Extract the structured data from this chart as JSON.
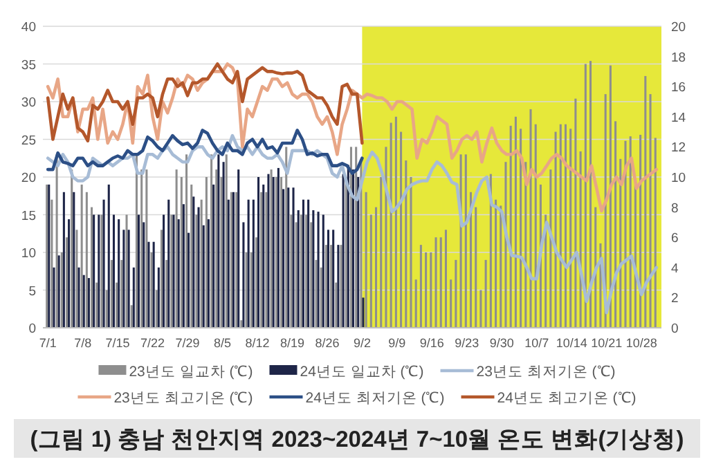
{
  "chart_data": {
    "type": "bar",
    "title": "(그림 1) 충남 천안지역 2023~2024년 7~10월 온도 변화(기상청)",
    "x": [
      "--07-01",
      "--07-02",
      "--07-03",
      "--07-04",
      "--07-05",
      "--07-06",
      "--07-07",
      "--07-08",
      "--07-09",
      "--07-10",
      "--07-11",
      "--07-12",
      "--07-13",
      "--07-14",
      "--07-15",
      "--07-16",
      "--07-17",
      "--07-18",
      "--07-19",
      "--07-20",
      "--07-21",
      "--07-22",
      "--07-23",
      "--07-24",
      "--07-25",
      "--07-26",
      "--07-27",
      "--07-28",
      "--07-29",
      "--07-30",
      "--07-31",
      "--08-01",
      "--08-02",
      "--08-03",
      "--08-04",
      "--08-05",
      "--08-06",
      "--08-07",
      "--08-08",
      "--08-09",
      "--08-10",
      "--08-11",
      "--08-12",
      "--08-13",
      "--08-14",
      "--08-15",
      "--08-16",
      "--08-17",
      "--08-18",
      "--08-19",
      "--08-20",
      "--08-21",
      "--08-22",
      "--08-23",
      "--08-24",
      "--08-25",
      "--08-26",
      "--08-27",
      "--08-28",
      "--08-29",
      "--08-30",
      "--08-31",
      "--09-01",
      "--09-02",
      "--09-03",
      "--09-04",
      "--09-05",
      "--09-06",
      "--09-07",
      "--09-08",
      "--09-09",
      "--09-10",
      "--09-11",
      "--09-12",
      "--09-13",
      "--09-14",
      "--09-15",
      "--09-16",
      "--09-17",
      "--09-18",
      "--09-19",
      "--09-20",
      "--09-21",
      "--09-22",
      "--09-23",
      "--09-24",
      "--09-25",
      "--09-26",
      "--09-27",
      "--09-28",
      "--09-29",
      "--09-30",
      "--10-01",
      "--10-02",
      "--10-03",
      "--10-04",
      "--10-05",
      "--10-06",
      "--10-07",
      "--10-08",
      "--10-09",
      "--10-10",
      "--10-11",
      "--10-12",
      "--10-13",
      "--10-14",
      "--10-15",
      "--10-16",
      "--10-17",
      "--10-18",
      "--10-19",
      "--10-20",
      "--10-21",
      "--10-22",
      "--10-23",
      "--10-24",
      "--10-25",
      "--10-26",
      "--10-27",
      "--10-28",
      "--10-29",
      "--10-30",
      "--10-31"
    ],
    "xlim": [
      "--06-30",
      "--11-01"
    ],
    "xticks": [
      {
        "value": "--07-01",
        "label": "7/1"
      },
      {
        "value": "--07-08",
        "label": "7/8"
      },
      {
        "value": "--07-15",
        "label": "7/15"
      },
      {
        "value": "--07-22",
        "label": "7/22"
      },
      {
        "value": "--07-29",
        "label": "7/29"
      },
      {
        "value": "--08-05",
        "label": "8/5"
      },
      {
        "value": "--08-12",
        "label": "8/12"
      },
      {
        "value": "--08-19",
        "label": "8/19"
      },
      {
        "value": "--08-26",
        "label": "8/26"
      },
      {
        "value": "--09-02",
        "label": "9/2"
      },
      {
        "value": "--09-09",
        "label": "9/9"
      },
      {
        "value": "--09-16",
        "label": "9/16"
      },
      {
        "value": "--09-23",
        "label": "9/23"
      },
      {
        "value": "--09-30",
        "label": "9/30"
      },
      {
        "value": "--10-07",
        "label": "10/7"
      },
      {
        "value": "--10-14",
        "label": "10/14"
      },
      {
        "value": "--10-21",
        "label": "10/21"
      },
      {
        "value": "--10-28",
        "label": "10/28"
      }
    ],
    "ylim": [
      0,
      40
    ],
    "yticks": [
      0,
      5,
      10,
      15,
      20,
      25,
      30,
      35,
      40
    ],
    "y2lim": [
      0,
      20
    ],
    "y2ticks": [
      0,
      2,
      4,
      6,
      8,
      10,
      12,
      14,
      16,
      18,
      20
    ],
    "grid": "y",
    "legend": "bottom",
    "bands": [
      {
        "axis": "x",
        "from": "--09-02",
        "to": "--11-01",
        "color": "#e6e83a"
      }
    ],
    "series": [
      {
        "name": "23년도 일교차 (℃)",
        "axis": "y2",
        "color": "#8e8e8e",
        "values": [
          9.5,
          8.5,
          11.5,
          5,
          6,
          10.5,
          6.5,
          9.5,
          9,
          8,
          3,
          7.5,
          2.5,
          4.5,
          3,
          4.5,
          7.5,
          1.5,
          11.5,
          10.5,
          10.5,
          5,
          2.5,
          6.5,
          4.5,
          7.5,
          10.5,
          10,
          11.5,
          9.5,
          7.5,
          8.5,
          10,
          11.5,
          10.5,
          10,
          11.5,
          9,
          9,
          0.5,
          5,
          5,
          6,
          9,
          9,
          10.5,
          10,
          10,
          12,
          7.5,
          7,
          7.5,
          7.5,
          7,
          4.5,
          4,
          5.5,
          5.5,
          3,
          5.5,
          10,
          12,
          12,
          11,
          9,
          7.5,
          8,
          10,
          12,
          13.6,
          14,
          13,
          11.1,
          10,
          3.2,
          5.5,
          5,
          5,
          6,
          6,
          6.5,
          3.2,
          4.5,
          11.5,
          11.5,
          9,
          8,
          2.5,
          4.5,
          10.2,
          8.5,
          8.1,
          11,
          13.4,
          14,
          13.2,
          11,
          14.5,
          13.5,
          9.5,
          7.5,
          10.5,
          13,
          13.5,
          13.5,
          13.2,
          15.2,
          11.7,
          17.5,
          17.7,
          8,
          5.6,
          15.5,
          17.4,
          13.7,
          11.2,
          12.4,
          12.7,
          9.5,
          12.8,
          16.7,
          15.5,
          12.6
        ]
      },
      {
        "name": "24년도 일교차 (℃)",
        "axis": "y2",
        "color": "#1e2548",
        "values": [
          9.5,
          4,
          4.8,
          9,
          7.2,
          9,
          4,
          3.5,
          3.3,
          7.5,
          7.5,
          8.5,
          9.5,
          7.5,
          7.2,
          6.5,
          6.5,
          4,
          7.5,
          7,
          5.7,
          5.7,
          4,
          7.5,
          8.5,
          7.5,
          7.2,
          8.2,
          6.3,
          8.7,
          8,
          6.8,
          7.2,
          9.5,
          11.5,
          11,
          8.5,
          9,
          10.5,
          7,
          8.5,
          8.5,
          10,
          9.5,
          10.2,
          10,
          10.6,
          9.2,
          9.3,
          9.3,
          7.8,
          8.5,
          8.5,
          7.8,
          7.7,
          7.5,
          6.5,
          6.5,
          5.5,
          10.2,
          10.8,
          10.5,
          10,
          2,
          null,
          null,
          null,
          null,
          null,
          null,
          null,
          null,
          null,
          null,
          null,
          null,
          null,
          null,
          null,
          null,
          null,
          null,
          null,
          null,
          null,
          null,
          null,
          null,
          null,
          null,
          null,
          null,
          null,
          null,
          null,
          null,
          null,
          null,
          null,
          null,
          null,
          null,
          null,
          null,
          null,
          null,
          null,
          null,
          null,
          null,
          null,
          null,
          null,
          null,
          null,
          null,
          null,
          null,
          null,
          null,
          null,
          null,
          null
        ]
      },
      {
        "name": "23년도 최저기온 (℃)",
        "type": "line",
        "color": "#a7bcd6",
        "values": [
          22.5,
          22,
          21.5,
          23,
          22,
          20,
          19.5,
          19.5,
          20,
          22.5,
          22,
          21.5,
          22,
          21.5,
          22,
          22.5,
          22.5,
          23,
          20.5,
          20.5,
          23,
          23,
          22.5,
          23.5,
          24,
          23,
          22.5,
          22,
          22,
          23.5,
          24,
          24,
          23,
          22.5,
          23.5,
          24,
          23.5,
          25.5,
          24,
          23.5,
          24,
          23,
          24,
          23,
          22.5,
          22.5,
          23,
          22,
          20.5,
          23.5,
          23.5,
          23.5,
          23.5,
          23,
          23.5,
          23,
          22.5,
          20.5,
          20,
          21.5,
          19,
          17.5,
          17,
          19.5,
          22,
          23.3,
          22.5,
          20.5,
          18,
          15.4,
          16,
          17,
          18.4,
          19,
          19.3,
          19.5,
          19.5,
          21,
          22,
          21.5,
          20.5,
          19.3,
          19,
          13.5,
          14,
          16,
          18,
          19.5,
          20,
          16.3,
          16,
          15.4,
          12,
          9.6,
          9.5,
          9.3,
          8,
          6.5,
          6.5,
          11,
          14,
          12,
          10,
          9,
          8,
          9,
          10,
          7,
          3.5,
          6,
          8,
          9.2,
          2,
          5,
          7.3,
          8.5,
          9,
          9.5,
          7,
          4.4,
          6,
          7,
          8
        ]
      },
      {
        "name": "23년도 최고기온 (℃)",
        "type": "line",
        "color": "#e8a686",
        "values": [
          32,
          30.5,
          33,
          28,
          28,
          30.5,
          26,
          29,
          29,
          30.5,
          25,
          29,
          24.5,
          26,
          25,
          27,
          30,
          24.5,
          32,
          31,
          33.5,
          28,
          25,
          30,
          28.5,
          30.5,
          33,
          32,
          33.5,
          33,
          31.5,
          32.5,
          33,
          34,
          34,
          34,
          35,
          34.5,
          33,
          24,
          29,
          28,
          30,
          32,
          31.5,
          33,
          33,
          32,
          32.5,
          31,
          30.5,
          31,
          31,
          30,
          28,
          27,
          28,
          26,
          23,
          27,
          29,
          31.5,
          31,
          30.5,
          31,
          30.8,
          30.5,
          30.5,
          30,
          29,
          30,
          30,
          29.5,
          29,
          22.5,
          25,
          24.5,
          26,
          28,
          27.5,
          27,
          22.5,
          23.5,
          25,
          25.5,
          25,
          26,
          22,
          24.5,
          26.5,
          24.5,
          23.5,
          23,
          23,
          23.5,
          22.5,
          19,
          21,
          20,
          20.5,
          21.5,
          22.5,
          23,
          22.5,
          21.5,
          21,
          20.5,
          20,
          19.5,
          21.5,
          18.5,
          15.5,
          17,
          19,
          20,
          19,
          21.5,
          22.5,
          18.5,
          19.5,
          20,
          20.5,
          21
        ]
      },
      {
        "name": "24년도 최저기온 (℃)",
        "type": "line",
        "color": "#2c4f86",
        "values": [
          21,
          21,
          23.2,
          22,
          21.8,
          21.5,
          22.5,
          22.5,
          21.5,
          22,
          21.5,
          21.5,
          22,
          22.5,
          22.8,
          22.5,
          23.5,
          23,
          23,
          23.5,
          25.3,
          24.8,
          24,
          23.5,
          24.5,
          25.5,
          24.8,
          24.3,
          24.5,
          23.8,
          24.5,
          26.2,
          25.8,
          24.5,
          23.5,
          23,
          24.5,
          23.5,
          23.5,
          23,
          24.5,
          25,
          24,
          25,
          23.8,
          24,
          23.2,
          24.5,
          24.5,
          24.5,
          26.2,
          25,
          23,
          23.2,
          22.8,
          23,
          23,
          21.5,
          21.5,
          21.8,
          21.5,
          20.5,
          21,
          22.5,
          null,
          null,
          null,
          null,
          null,
          null,
          null,
          null,
          null,
          null,
          null,
          null,
          null,
          null,
          null,
          null,
          null,
          null,
          null,
          null,
          null,
          null,
          null,
          null,
          null,
          null,
          null,
          null,
          null,
          null,
          null,
          null,
          null,
          null,
          null,
          null,
          null,
          null,
          null,
          null,
          null,
          null,
          null,
          null,
          null,
          null,
          null,
          null,
          null,
          null,
          null,
          null,
          null,
          null,
          null,
          null,
          null,
          null,
          null
        ]
      },
      {
        "name": "24년도 최고기온 (℃)",
        "type": "line",
        "color": "#b4572b",
        "values": [
          30.5,
          25,
          28,
          31,
          29,
          30.5,
          26.5,
          26,
          24.8,
          29.5,
          29,
          30,
          31.5,
          30,
          30,
          29,
          30,
          27,
          30.5,
          30.5,
          31,
          30.5,
          28,
          31,
          33,
          33,
          32,
          32.5,
          30.8,
          32.5,
          32.5,
          33,
          33,
          34,
          35,
          34,
          33,
          32.5,
          34,
          30,
          33,
          33.5,
          34,
          34.5,
          34,
          34,
          33.8,
          33.7,
          33.8,
          33.8,
          34,
          33.5,
          31.5,
          31,
          30.5,
          30.5,
          29.5,
          28,
          27,
          32,
          32.3,
          31,
          31,
          24.5,
          null,
          null,
          null,
          null,
          null,
          null,
          null,
          null,
          null,
          null,
          null,
          null,
          null,
          null,
          null,
          null,
          null,
          null,
          null,
          null,
          null,
          null,
          null,
          null,
          null,
          null,
          null,
          null,
          null,
          null,
          null,
          null,
          null,
          null,
          null,
          null,
          null,
          null,
          null,
          null,
          null,
          null,
          null,
          null,
          null,
          null,
          null,
          null,
          null,
          null,
          null,
          null,
          null,
          null,
          null,
          null,
          null,
          null,
          null
        ]
      }
    ]
  }
}
